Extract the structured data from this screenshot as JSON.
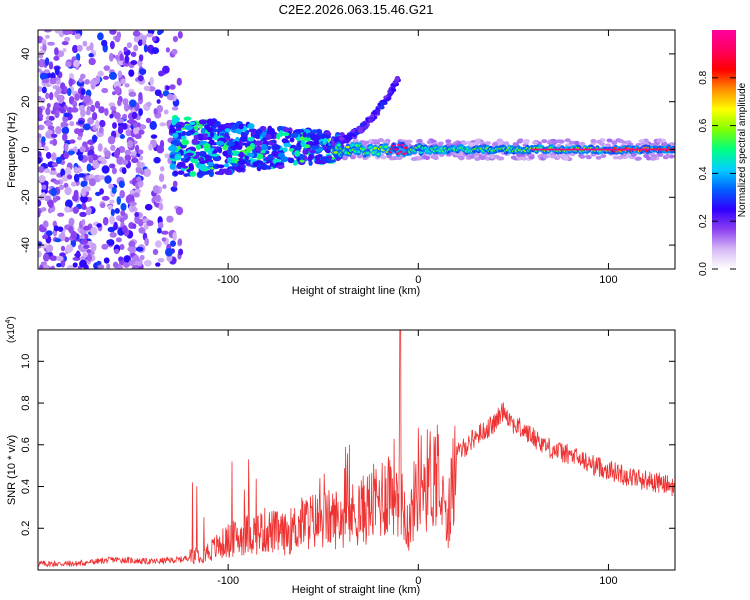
{
  "chart_data": [
    {
      "type": "heatmap",
      "title": "C2E2.2026.063.15.46.G21",
      "xlabel": "Height of straight line (km)",
      "ylabel": "Frequency (Hz)",
      "xlim": [
        -200,
        135
      ],
      "ylim": [
        -50,
        50
      ],
      "xticks": [
        -100,
        0,
        100
      ],
      "xtick_labels": [
        "-100",
        "0",
        "100"
      ],
      "yticks": [
        -40,
        -20,
        0,
        20,
        40
      ],
      "ytick_labels": [
        "-40",
        "-20",
        "0",
        "20",
        "40"
      ],
      "colorbar": {
        "label": "Normalized spectral amplitude",
        "range": [
          0,
          1
        ],
        "ticks": [
          0.0,
          0.2,
          0.4,
          0.6,
          0.8
        ],
        "tick_labels": [
          "0.0",
          "0.2",
          "0.4",
          "0.6",
          "0.8"
        ],
        "colormap": [
          "#ffffff",
          "#d6b8f5",
          "#8a3ff0",
          "#3000ff",
          "#0060ff",
          "#00d0ff",
          "#00ff80",
          "#80ff00",
          "#ffff00",
          "#ff9000",
          "#ff0000",
          "#ff0060",
          "#ff00a0"
        ]
      },
      "features": {
        "noise_region_x": [
          -200,
          -125
        ],
        "bright_band_x": [
          -45,
          135
        ],
        "bright_band_freq": 0,
        "rising_branch": {
          "x": [
            -45,
            -10
          ],
          "freq": [
            3,
            30
          ]
        }
      }
    },
    {
      "type": "line",
      "title": "",
      "xlabel": "Height of straight line (km)",
      "ylabel": "SNR (10 * v/v)",
      "y_multiplier": "(x10",
      "y_multiplier_exp": "4",
      "y_multiplier_close": ")",
      "xlim": [
        -200,
        135
      ],
      "ylim": [
        0,
        1.15
      ],
      "xticks": [
        -100,
        0,
        100
      ],
      "xtick_labels": [
        "-100",
        "0",
        "100"
      ],
      "yticks": [
        0.2,
        0.4,
        0.6,
        0.8,
        1.0
      ],
      "ytick_labels": [
        "0.2",
        "0.4",
        "0.6",
        "0.8",
        "1.0"
      ],
      "series": [
        {
          "name": "SNR",
          "color": "#ee3333",
          "x": [
            -200,
            -180,
            -160,
            -140,
            -125,
            -110,
            -100,
            -90,
            -80,
            -70,
            -60,
            -50,
            -40,
            -30,
            -20,
            -15,
            -10,
            -5,
            0,
            5,
            10,
            15,
            20,
            30,
            40,
            45,
            50,
            60,
            70,
            80,
            90,
            100,
            110,
            120,
            135
          ],
          "values": [
            0.03,
            0.03,
            0.05,
            0.04,
            0.05,
            0.09,
            0.14,
            0.17,
            0.19,
            0.17,
            0.23,
            0.24,
            0.25,
            0.28,
            0.34,
            0.4,
            0.4,
            0.2,
            0.44,
            0.43,
            0.48,
            0.2,
            0.55,
            0.64,
            0.7,
            0.77,
            0.7,
            0.64,
            0.58,
            0.55,
            0.51,
            0.48,
            0.45,
            0.43,
            0.4
          ]
        }
      ]
    }
  ]
}
